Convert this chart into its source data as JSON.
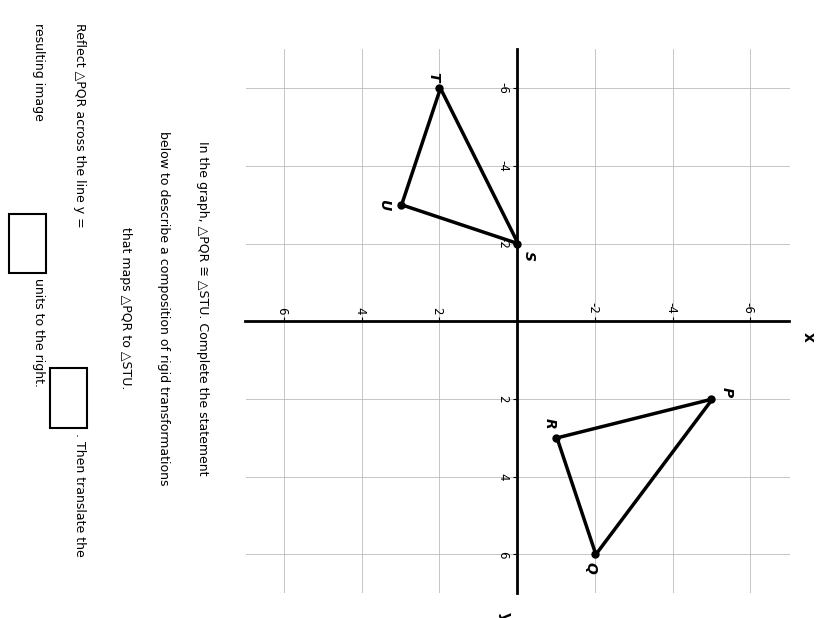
{
  "P": [
    2,
    -5
  ],
  "Q": [
    6,
    -2
  ],
  "R": [
    3,
    -1
  ],
  "S": [
    -2,
    0
  ],
  "T": [
    -6,
    2
  ],
  "U": [
    -3,
    3
  ],
  "grid_color": "#bbbbbb",
  "triangle_color": "#000000",
  "background_color": "#ffffff",
  "text_lines": [
    "In the graph, △PQR ≅ △STU. Complete the statement",
    "below to describe a composition of rigid transformations",
    "that maps △PQR to △STU."
  ],
  "reflect_text": "Reflect △PQR across the line y =",
  "translate_text1": ". Then translate the",
  "translate_text2": "resulting image",
  "translate_text3": "units to the right."
}
